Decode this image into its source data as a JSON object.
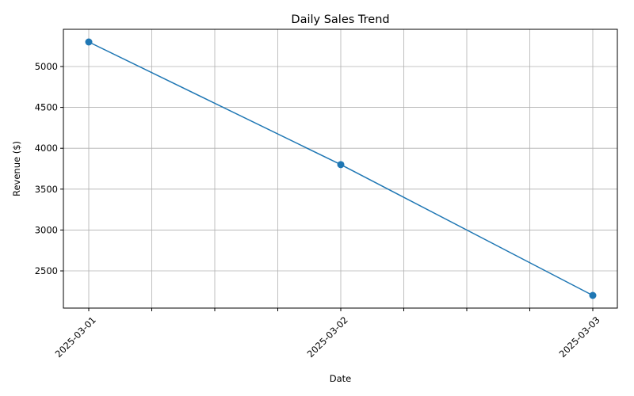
{
  "chart_data": {
    "type": "line",
    "title": "Daily Sales Trend",
    "xlabel": "Date",
    "ylabel": "Revenue ($)",
    "x": [
      "2025-03-01",
      "2025-03-02",
      "2025-03-03"
    ],
    "series": [
      {
        "values": [
          5300,
          3800,
          2200
        ],
        "color": "#1f77b4",
        "marker": "circle"
      }
    ],
    "yticks": [
      2500,
      3000,
      3500,
      4000,
      4500,
      5000
    ],
    "ylim": [
      2045,
      5455
    ],
    "x_tick_labels": [
      "2025-03-01",
      "2025-03-02",
      "2025-03-03"
    ],
    "x_minor_ticks_per_interval": 3,
    "grid": true,
    "legend": "none"
  }
}
